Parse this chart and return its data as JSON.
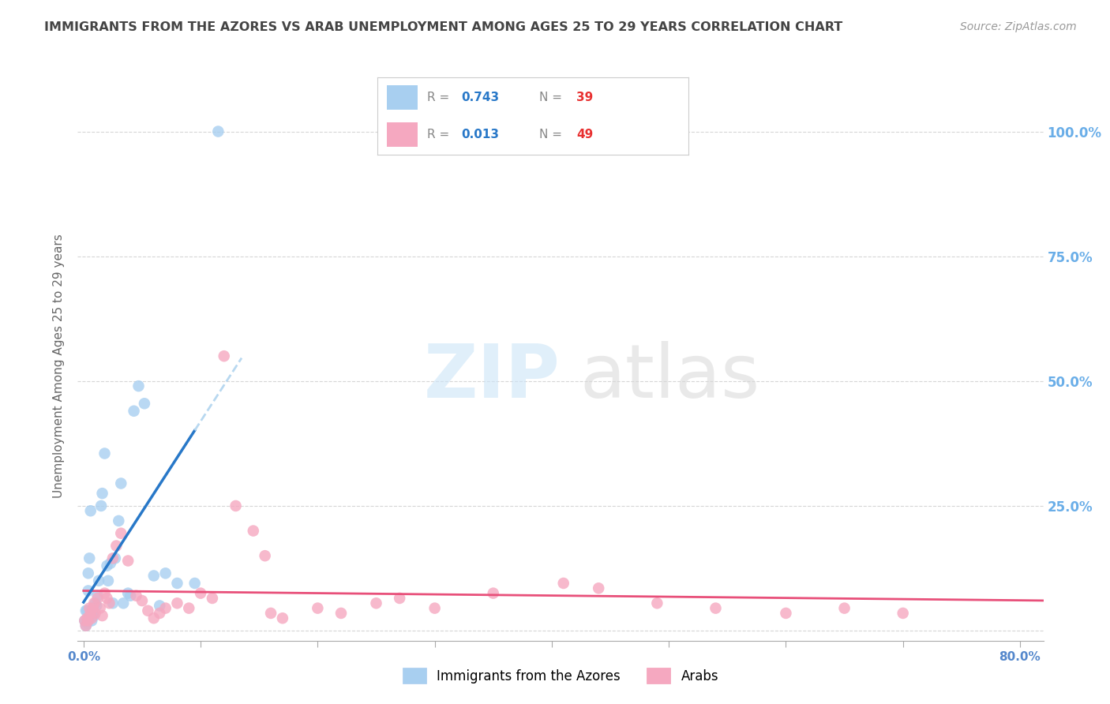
{
  "title": "IMMIGRANTS FROM THE AZORES VS ARAB UNEMPLOYMENT AMONG AGES 25 TO 29 YEARS CORRELATION CHART",
  "source": "Source: ZipAtlas.com",
  "ylabel": "Unemployment Among Ages 25 to 29 years",
  "xlim": [
    -0.005,
    0.82
  ],
  "ylim": [
    -0.02,
    1.08
  ],
  "xticks": [
    0.0,
    0.1,
    0.2,
    0.3,
    0.4,
    0.5,
    0.6,
    0.7,
    0.8
  ],
  "xtick_labels_sparse": [
    "0.0%",
    "",
    "",
    "",
    "",
    "",
    "",
    "",
    "80.0%"
  ],
  "yticks_right": [
    0.0,
    0.25,
    0.5,
    0.75,
    1.0
  ],
  "ytick_right_labels": [
    "",
    "25.0%",
    "50.0%",
    "75.0%",
    "100.0%"
  ],
  "blue_R": "0.743",
  "blue_N": "39",
  "pink_R": "0.013",
  "pink_N": "49",
  "blue_color": "#a8cff0",
  "pink_color": "#f5a8c0",
  "blue_line_color": "#2878c8",
  "pink_line_color": "#e8507a",
  "blue_dashed_color": "#b8d8f0",
  "background_color": "#ffffff",
  "grid_color": "#cccccc",
  "title_color": "#444444",
  "right_axis_color": "#6aaee8",
  "legend_R_blue_color": "#2878c8",
  "legend_N_red_color": "#e83030",
  "blue_scatter_x": [
    0.001,
    0.002,
    0.002,
    0.003,
    0.003,
    0.004,
    0.004,
    0.005,
    0.005,
    0.006,
    0.007,
    0.008,
    0.009,
    0.01,
    0.011,
    0.012,
    0.013,
    0.015,
    0.016,
    0.018,
    0.02,
    0.021,
    0.023,
    0.025,
    0.027,
    0.03,
    0.032,
    0.034,
    0.038,
    0.04,
    0.043,
    0.047,
    0.052,
    0.06,
    0.065,
    0.07,
    0.08,
    0.095,
    0.115
  ],
  "blue_scatter_y": [
    0.02,
    0.01,
    0.04,
    0.015,
    0.04,
    0.08,
    0.115,
    0.03,
    0.145,
    0.24,
    0.02,
    0.035,
    0.03,
    0.055,
    0.05,
    0.07,
    0.1,
    0.25,
    0.275,
    0.355,
    0.13,
    0.1,
    0.135,
    0.055,
    0.145,
    0.22,
    0.295,
    0.055,
    0.075,
    0.07,
    0.44,
    0.49,
    0.455,
    0.11,
    0.05,
    0.115,
    0.095,
    0.095,
    1.0
  ],
  "pink_scatter_x": [
    0.001,
    0.002,
    0.003,
    0.004,
    0.005,
    0.006,
    0.007,
    0.008,
    0.009,
    0.01,
    0.012,
    0.014,
    0.016,
    0.018,
    0.02,
    0.022,
    0.025,
    0.028,
    0.032,
    0.038,
    0.045,
    0.05,
    0.055,
    0.06,
    0.065,
    0.07,
    0.08,
    0.09,
    0.1,
    0.11,
    0.12,
    0.13,
    0.145,
    0.155,
    0.16,
    0.17,
    0.2,
    0.22,
    0.25,
    0.27,
    0.3,
    0.35,
    0.41,
    0.44,
    0.49,
    0.54,
    0.6,
    0.65,
    0.7
  ],
  "pink_scatter_y": [
    0.02,
    0.01,
    0.025,
    0.02,
    0.045,
    0.035,
    0.025,
    0.045,
    0.055,
    0.035,
    0.065,
    0.045,
    0.03,
    0.075,
    0.065,
    0.055,
    0.145,
    0.17,
    0.195,
    0.14,
    0.07,
    0.06,
    0.04,
    0.025,
    0.035,
    0.045,
    0.055,
    0.045,
    0.075,
    0.065,
    0.55,
    0.25,
    0.2,
    0.15,
    0.035,
    0.025,
    0.045,
    0.035,
    0.055,
    0.065,
    0.045,
    0.075,
    0.095,
    0.085,
    0.055,
    0.045,
    0.035,
    0.045,
    0.035
  ]
}
